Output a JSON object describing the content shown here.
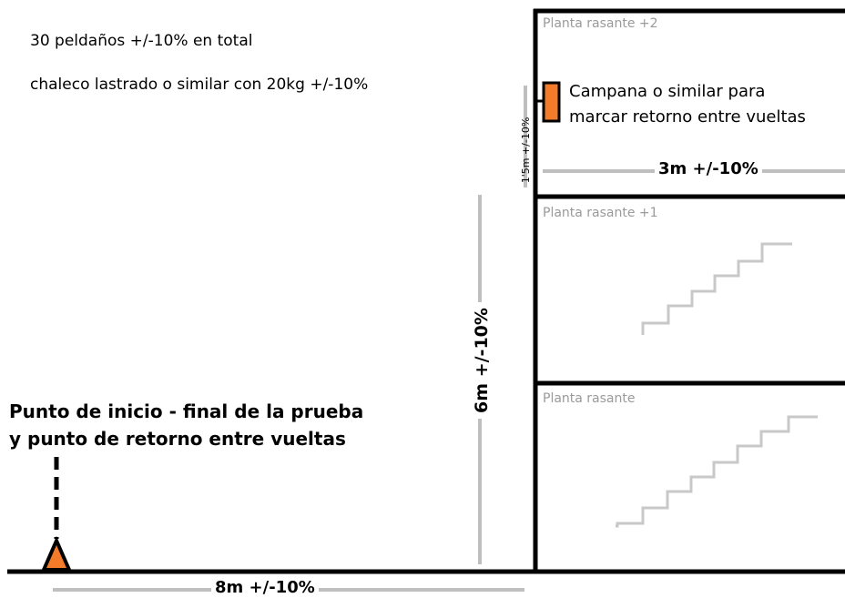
{
  "notes": {
    "steps": "30 peldaños +/-10% en total",
    "vest": "chaleco lastrado o similar con 20kg +/-10%"
  },
  "floors": {
    "top": "Planta rasante +2",
    "middle": "Planta rasante +1",
    "ground": "Planta rasante"
  },
  "bell": {
    "line1": "Campana o similar para",
    "line2": "marcar retorno entre vueltas"
  },
  "start": {
    "line1": "Punto de inicio - final de la prueba",
    "line2": "y punto de retorno entre vueltas"
  },
  "dimensions": {
    "height": "6m +/-10%",
    "width": "8m +/-10%",
    "platform": "3m +/-10%",
    "bell_height": "1'5m +/-10%"
  },
  "colors": {
    "marker": "#f47b2a",
    "line": "#000000",
    "dim_line": "#bfbfbf",
    "stairs": "#c8c8c8"
  }
}
